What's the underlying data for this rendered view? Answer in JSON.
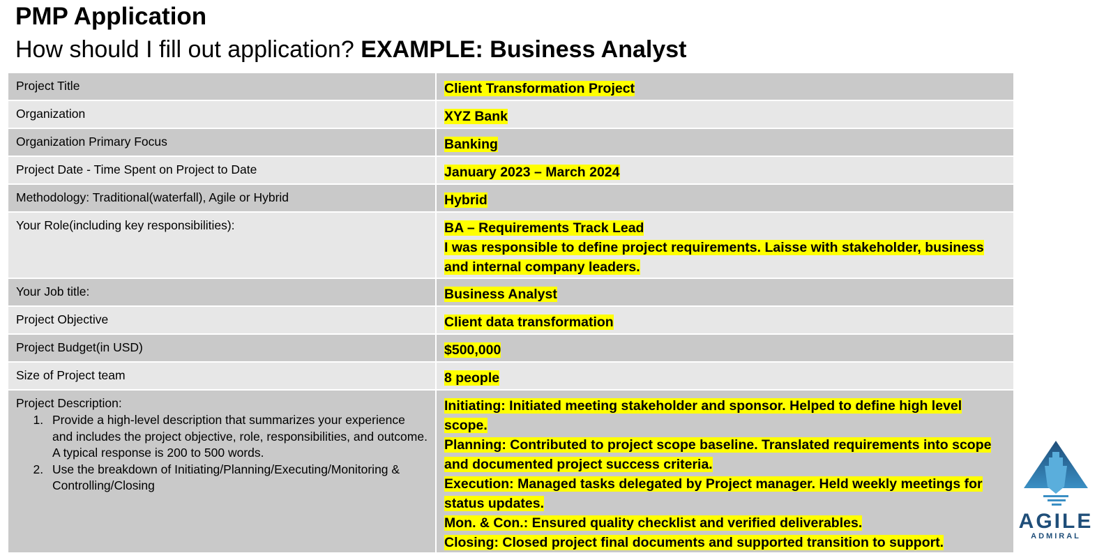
{
  "header": {
    "title": "PMP Application",
    "subtitle_plain": "How should I fill out application? ",
    "subtitle_bold": "EXAMPLE: Business Analyst"
  },
  "rows": [
    {
      "label": "Project Title",
      "value": "Client Transformation Project"
    },
    {
      "label": "Organization",
      "value": "XYZ Bank"
    },
    {
      "label": "Organization Primary Focus",
      "value": "Banking"
    },
    {
      "label": "Project Date -  Time Spent on Project to Date",
      "value": "January 2023 – March 2024"
    },
    {
      "label": "Methodology: Traditional(waterfall), Agile or Hybrid",
      "value": "Hybrid"
    },
    {
      "label": "Your Role(including key responsibilities):",
      "value_lines": [
        "BA – Requirements Track Lead",
        "I was responsible to define project requirements. Laisse with stakeholder, business and internal company leaders."
      ]
    },
    {
      "label": "Your Job title:",
      "value": "Business Analyst"
    },
    {
      "label": "Project Objective",
      "value": "Client data transformation"
    },
    {
      "label": "Project Budget(in USD)",
      "value": "$500,000"
    },
    {
      "label": "Size of Project team",
      "value": "8 people"
    }
  ],
  "description": {
    "label": "Project Description:",
    "items": [
      "Provide a high-level description that summarizes your experience and includes the project objective, role, responsibilities, and outcome.  A typical response is 200 to 500 words.",
      "Use the breakdown of Initiating/Planning/Executing/Monitoring & Controlling/Closing"
    ],
    "value_lines": [
      "Initiating: Initiated meeting stakeholder and sponsor. Helped to define high level scope.",
      "Planning: Contributed to project scope baseline. Translated requirements into scope and documented project success criteria.",
      "Execution: Managed tasks delegated by Project manager. Held weekly meetings for status updates.",
      "Mon. & Con.: Ensured quality checklist and verified deliverables.",
      "Closing: Closed project final documents and supported transition to support."
    ]
  },
  "logo": {
    "name": "AGILE",
    "sub": "ADMIRAL",
    "color": "#1f4e79"
  },
  "colors": {
    "highlight": "#ffff00",
    "row_dark": "#c9c9c9",
    "row_light": "#e7e7e7"
  }
}
